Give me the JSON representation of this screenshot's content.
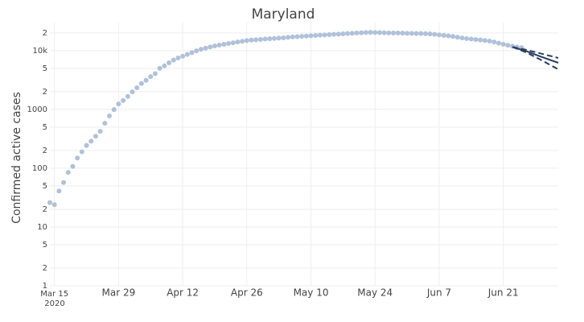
{
  "chart_data": {
    "type": "scatter",
    "title": "Maryland",
    "y_label": "Confirmed active cases",
    "y_scale": "log",
    "grid": true,
    "xlim": [
      "2020-03-14",
      "2020-07-03"
    ],
    "ylim": [
      1,
      30000
    ],
    "xticks": [
      {
        "value": "2020-03-15",
        "label": "Mar 15"
      },
      {
        "value": "2020-03-29",
        "label": "Mar 29"
      },
      {
        "value": "2020-04-12",
        "label": "Apr 12"
      },
      {
        "value": "2020-04-26",
        "label": "Apr 26"
      },
      {
        "value": "2020-05-10",
        "label": "May 10"
      },
      {
        "value": "2020-05-24",
        "label": "May 24"
      },
      {
        "value": "2020-06-07",
        "label": "Jun 7"
      },
      {
        "value": "2020-06-21",
        "label": "Jun 21"
      }
    ],
    "x_year_label": "2020",
    "yticks": [
      1,
      2,
      5,
      10,
      {
        "value": 20,
        "label": "2"
      },
      {
        "value": 50,
        "label": "5"
      },
      100,
      {
        "value": 200,
        "label": "2"
      },
      {
        "value": 500,
        "label": "5"
      },
      1000,
      {
        "value": 2000,
        "label": "2"
      },
      {
        "value": 5000,
        "label": "5"
      },
      {
        "value": 10000,
        "label": "10k"
      },
      {
        "value": 20000,
        "label": "2"
      }
    ],
    "series": [
      {
        "mode": "markers",
        "color": "#b0c1d9",
        "x": [
          "2020-03-14",
          "2020-03-15",
          "2020-03-16",
          "2020-03-17",
          "2020-03-18",
          "2020-03-19",
          "2020-03-20",
          "2020-03-21",
          "2020-03-22",
          "2020-03-23",
          "2020-03-24",
          "2020-03-25",
          "2020-03-26",
          "2020-03-27",
          "2020-03-28",
          "2020-03-29",
          "2020-03-30",
          "2020-03-31",
          "2020-04-01",
          "2020-04-02",
          "2020-04-03",
          "2020-04-04",
          "2020-04-05",
          "2020-04-06",
          "2020-04-07",
          "2020-04-08",
          "2020-04-09",
          "2020-04-10",
          "2020-04-11",
          "2020-04-12",
          "2020-04-13",
          "2020-04-14",
          "2020-04-15",
          "2020-04-16",
          "2020-04-17",
          "2020-04-18",
          "2020-04-19",
          "2020-04-20",
          "2020-04-21",
          "2020-04-22",
          "2020-04-23",
          "2020-04-24",
          "2020-04-25",
          "2020-04-26",
          "2020-04-27",
          "2020-04-28",
          "2020-04-29",
          "2020-04-30",
          "2020-05-01",
          "2020-05-02",
          "2020-05-03",
          "2020-05-04",
          "2020-05-05",
          "2020-05-06",
          "2020-05-07",
          "2020-05-08",
          "2020-05-09",
          "2020-05-10",
          "2020-05-11",
          "2020-05-12",
          "2020-05-13",
          "2020-05-14",
          "2020-05-15",
          "2020-05-16",
          "2020-05-17",
          "2020-05-18",
          "2020-05-19",
          "2020-05-20",
          "2020-05-21",
          "2020-05-22",
          "2020-05-23",
          "2020-05-24",
          "2020-05-25",
          "2020-05-26",
          "2020-05-27",
          "2020-05-28",
          "2020-05-29",
          "2020-05-30",
          "2020-05-31",
          "2020-06-01",
          "2020-06-02",
          "2020-06-03",
          "2020-06-04",
          "2020-06-05",
          "2020-06-06",
          "2020-06-07",
          "2020-06-08",
          "2020-06-09",
          "2020-06-10",
          "2020-06-11",
          "2020-06-12",
          "2020-06-13",
          "2020-06-14",
          "2020-06-15",
          "2020-06-16",
          "2020-06-17",
          "2020-06-18",
          "2020-06-19",
          "2020-06-20",
          "2020-06-21",
          "2020-06-22",
          "2020-06-23",
          "2020-06-24",
          "2020-06-25"
        ],
        "values": [
          26,
          24,
          41,
          57,
          85,
          107,
          149,
          190,
          244,
          288,
          349,
          423,
          580,
          774,
          992,
          1239,
          1413,
          1660,
          1985,
          2331,
          2758,
          3125,
          3609,
          4045,
          5000,
          5500,
          6200,
          6900,
          7500,
          8000,
          8600,
          9200,
          9900,
          10500,
          11000,
          11500,
          12000,
          12400,
          12800,
          13200,
          13600,
          14000,
          14400,
          14800,
          15100,
          15300,
          15500,
          15700,
          15900,
          16100,
          16300,
          16500,
          16800,
          17100,
          17300,
          17500,
          17700,
          17900,
          18100,
          18300,
          18500,
          18700,
          18900,
          19100,
          19300,
          19500,
          19700,
          19900,
          20100,
          20300,
          20400,
          20300,
          20200,
          20100,
          20000,
          19900,
          19900,
          19800,
          19700,
          19600,
          19500,
          19500,
          19400,
          19200,
          18900,
          18500,
          18100,
          17800,
          17400,
          16900,
          16400,
          16000,
          15700,
          15400,
          15200,
          14900,
          14500,
          14000,
          13400,
          12800,
          12300,
          11900,
          11500,
          11200
        ]
      },
      {
        "mode": "lines",
        "dash": false,
        "color": "#2a3f5f",
        "x": [
          "2020-06-23",
          "2020-06-26",
          "2020-06-29",
          "2020-07-03"
        ],
        "values": [
          11500,
          9800,
          8000,
          6200
        ]
      },
      {
        "mode": "lines",
        "dash": true,
        "color": "#2a3f5f",
        "x": [
          "2020-06-23",
          "2020-06-26",
          "2020-06-29",
          "2020-07-03"
        ],
        "values": [
          11500,
          10300,
          9000,
          7500
        ]
      },
      {
        "mode": "lines",
        "dash": true,
        "color": "#2a3f5f",
        "x": [
          "2020-06-23",
          "2020-06-26",
          "2020-06-29",
          "2020-07-03"
        ],
        "values": [
          11500,
          9300,
          7100,
          4800
        ]
      }
    ]
  }
}
